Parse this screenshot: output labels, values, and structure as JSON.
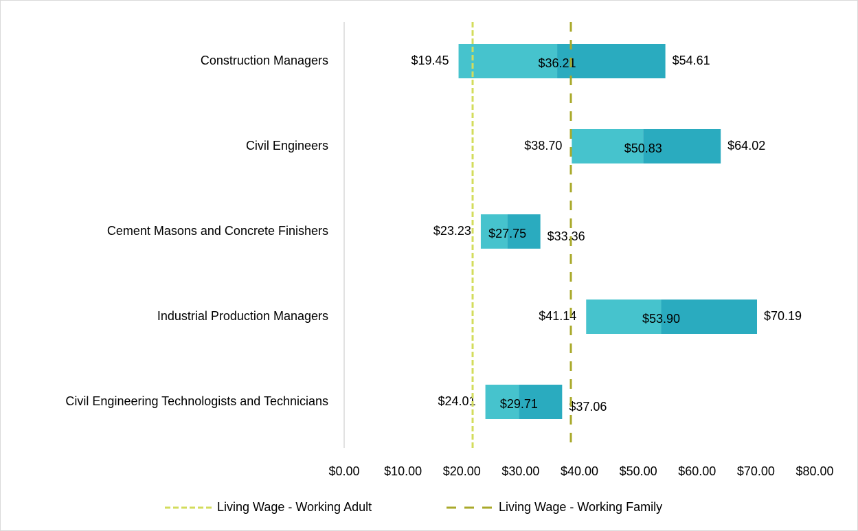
{
  "chart_data": {
    "type": "range_bar",
    "categories": [
      "Construction Managers",
      "Civil Engineers",
      "Cement Masons and Concrete Finishers",
      "Industrial Production Managers",
      "Civil Engineering Technologists and Technicians"
    ],
    "low": {
      "values": [
        19.45,
        38.7,
        23.23,
        41.14,
        24.01
      ],
      "value_labels": [
        "$19.45",
        "$38.70",
        "$23.23",
        "$41.14",
        "$24.01"
      ]
    },
    "median": {
      "values": [
        36.21,
        50.83,
        27.75,
        53.9,
        29.71
      ],
      "value_labels": [
        "$36.21",
        "$50.83",
        "$27.75",
        "$53.90",
        "$29.71"
      ],
      "color": "#46c3cd"
    },
    "high": {
      "values": [
        54.61,
        64.02,
        33.36,
        70.19,
        37.06
      ],
      "value_labels": [
        "$54.61",
        "$64.02",
        "$33.36",
        "$70.19",
        "$37.06"
      ],
      "color": "#2aabbf"
    },
    "reference_lines": [
      {
        "name": "Living Wage - Working Adult",
        "value": 21.84,
        "color": "#d3dc5c"
      },
      {
        "name": "Living Wage - Working Family",
        "value": 38.54,
        "color": "#a9a92a"
      }
    ],
    "xlim": [
      0,
      80
    ],
    "xticks": [
      {
        "value": 0,
        "label": "$0.00"
      },
      {
        "value": 10,
        "label": "$10.00"
      },
      {
        "value": 20,
        "label": "$20.00"
      },
      {
        "value": 30,
        "label": "$30.00"
      },
      {
        "value": 40,
        "label": "$40.00"
      },
      {
        "value": 50,
        "label": "$50.00"
      },
      {
        "value": 60,
        "label": "$60.00"
      },
      {
        "value": 70,
        "label": "$70.00"
      },
      {
        "value": 80,
        "label": "$80.00"
      }
    ],
    "legend": "bottom"
  }
}
